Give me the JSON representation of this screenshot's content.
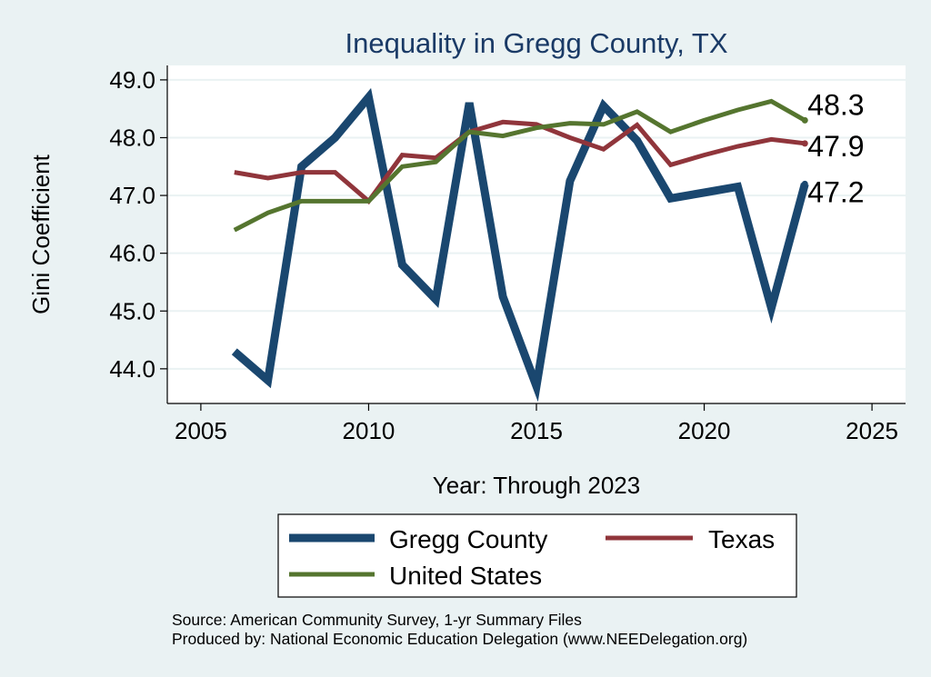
{
  "chart_data": {
    "type": "line",
    "title": "Inequality in Gregg County, TX",
    "xlabel": "Year: Through 2023",
    "ylabel": "Gini Coefficient",
    "xlim": [
      2004,
      2026
    ],
    "ylim": [
      43.4,
      49.25
    ],
    "xticks": [
      2005,
      2010,
      2015,
      2020,
      2025
    ],
    "yticks": [
      44.0,
      45.0,
      46.0,
      47.0,
      48.0,
      49.0
    ],
    "ytick_labels": [
      "44.0",
      "45.0",
      "46.0",
      "47.0",
      "48.0",
      "49.0"
    ],
    "grid": "horizontal",
    "x": [
      2006,
      2007,
      2008,
      2009,
      2010,
      2011,
      2012,
      2013,
      2014,
      2015,
      2016,
      2017,
      2018,
      2019,
      2020,
      2021,
      2022,
      2023
    ],
    "series": [
      {
        "name": "Gregg County",
        "color": "#1a476f",
        "values": [
          44.3,
          43.8,
          47.5,
          48.0,
          48.7,
          45.8,
          45.2,
          48.6,
          45.25,
          43.7,
          47.25,
          48.55,
          47.95,
          46.95,
          47.05,
          47.15,
          45.05,
          47.2
        ],
        "end_label": "47.2"
      },
      {
        "name": "Texas",
        "color": "#90353b",
        "values": [
          47.4,
          47.3,
          47.4,
          47.4,
          46.9,
          47.7,
          47.65,
          48.1,
          48.27,
          48.23,
          48.0,
          47.8,
          48.22,
          47.53,
          47.7,
          47.85,
          47.97,
          47.9
        ],
        "end_label": "47.9"
      },
      {
        "name": "United States",
        "color": "#55752f",
        "values": [
          46.4,
          46.7,
          46.9,
          46.9,
          46.9,
          47.5,
          47.58,
          48.1,
          48.03,
          48.17,
          48.25,
          48.23,
          48.45,
          48.1,
          48.3,
          48.48,
          48.63,
          48.3
        ],
        "end_label": "48.3"
      }
    ],
    "legend": {
      "placement": "bottom",
      "items": [
        "Gregg County",
        "Texas",
        "United States"
      ]
    },
    "source_lines": [
      "Source: American Community Survey, 1-yr Summary Files",
      "Produced by: National Economic Education Delegation (www.NEEDelegation.org)"
    ]
  },
  "colors": {
    "background": "#eaf2f3",
    "plot_area": "#ffffff",
    "title": "#1a3a66",
    "grid": "#eaf2f3"
  }
}
